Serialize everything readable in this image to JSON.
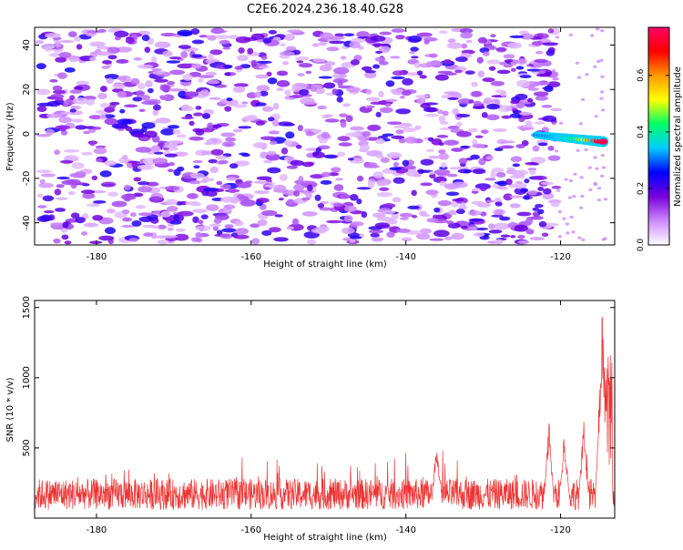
{
  "chart_data": [
    {
      "type": "heatmap",
      "title": "C2E6.2024.236.18.40.G28",
      "xlabel": "Height of straight line (km)",
      "ylabel": "Frequency (Hz)",
      "xlim": [
        -188,
        -113
      ],
      "ylim": [
        -50,
        48
      ],
      "x_ticks": [
        -180,
        -160,
        -140,
        -120
      ],
      "y_ticks": [
        -40,
        -20,
        0,
        20,
        40
      ],
      "x_tick_labels": [
        "-180",
        "-160",
        "-140",
        "-120"
      ],
      "y_tick_labels": [
        "-40",
        "-20",
        "0",
        "20",
        "40"
      ],
      "noise_x_range": [
        -188,
        -122
      ],
      "noise_level": 0.15,
      "signal": {
        "x_start": -123,
        "x_end": -114.5,
        "frequency_start": -0.5,
        "frequency_end": -3.5,
        "peak_x": -115,
        "peak_value": 0.75
      },
      "colorbar": {
        "label": "Normalized spectral amplitude",
        "range": [
          0,
          0.77
        ],
        "ticks": [
          0,
          0.2,
          0.4,
          0.6
        ],
        "tick_labels": [
          "0.0",
          "0.2",
          "0.4",
          "0.6"
        ],
        "colors": [
          "#ffffff",
          "#cc88ff",
          "#7700dd",
          "#0000ff",
          "#00ccff",
          "#00ff66",
          "#ffff00",
          "#ff9900",
          "#ff0000",
          "#ff0066"
        ]
      }
    },
    {
      "type": "line",
      "xlabel": "Height of straight line (km)",
      "ylabel": "SNR (10 * v/v)",
      "xlim": [
        -188,
        -113
      ],
      "ylim": [
        0,
        1550
      ],
      "x_ticks": [
        -180,
        -160,
        -140,
        -120
      ],
      "y_ticks": [
        500,
        1000,
        1500
      ],
      "x_tick_labels": [
        "-180",
        "-160",
        "-140",
        "-120"
      ],
      "y_tick_labels": [
        "500",
        "1000",
        "1500"
      ],
      "color": "#ee3333",
      "baseline_mean": 170,
      "baseline_spread": 110,
      "envelope_peaks": [
        {
          "x": -136,
          "y": 560
        },
        {
          "x": -121.5,
          "y": 720
        },
        {
          "x": -119.5,
          "y": 650
        },
        {
          "x": -117,
          "y": 720
        },
        {
          "x": -114.6,
          "y": 1520
        }
      ]
    }
  ]
}
